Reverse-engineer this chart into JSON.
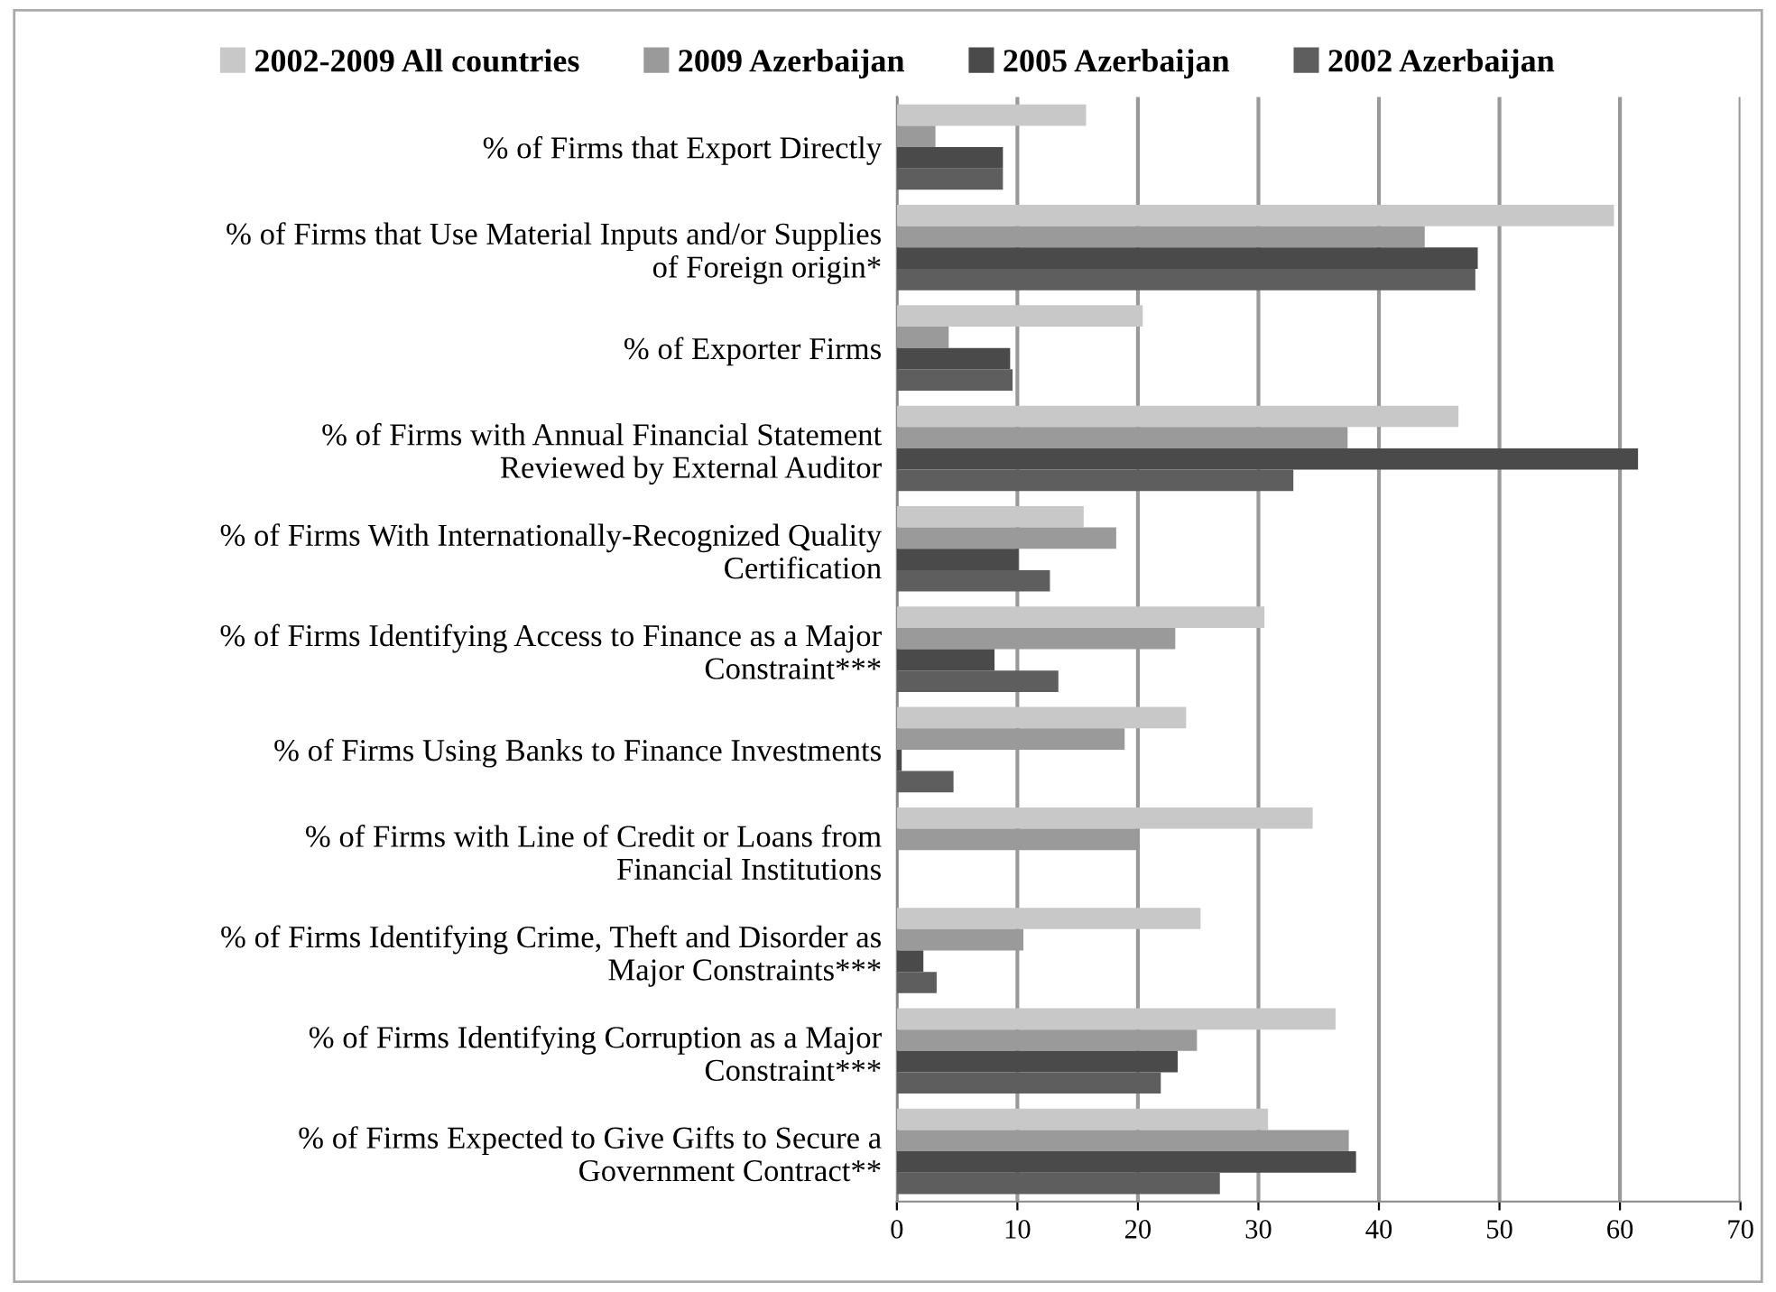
{
  "chart_data": {
    "type": "bar",
    "orientation": "horizontal",
    "categories": [
      "% of Firms that Export Directly",
      "% of Firms that Use Material Inputs and/or Supplies\nof Foreign origin*",
      "% of Exporter Firms",
      "% of Firms with Annual Financial Statement\nReviewed by External Auditor",
      "% of Firms With Internationally-Recognized Quality\nCertification",
      "% of Firms Identifying Access to Finance as a Major\nConstraint***",
      "% of Firms Using Banks to Finance Investments",
      "% of Firms with Line of Credit or Loans from\nFinancial Institutions",
      "% of Firms Identifying Crime, Theft and Disorder as\nMajor Constraints***",
      "% of Firms Identifying Corruption as a Major\nConstraint***",
      "% of Firms Expected to Give Gifts to Secure a\nGovernment Contract**"
    ],
    "series": [
      {
        "name": "2002-2009 All countries",
        "color": "#c8c8c8",
        "values": [
          15.7,
          59.5,
          20.4,
          46.6,
          15.5,
          30.5,
          24.0,
          34.5,
          25.2,
          36.4,
          30.8
        ]
      },
      {
        "name": "2009 Azerbaijan",
        "color": "#9a9a9a",
        "values": [
          3.2,
          43.8,
          4.3,
          37.4,
          18.2,
          23.1,
          18.9,
          19.9,
          10.5,
          24.9,
          37.5
        ]
      },
      {
        "name": "2005 Azerbaijan",
        "color": "#4a4a4a",
        "values": [
          8.8,
          48.2,
          9.4,
          61.5,
          10.1,
          8.1,
          0.4,
          null,
          2.2,
          23.3,
          38.1
        ]
      },
      {
        "name": "2002 Azerbaijan",
        "color": "#5e5e5e",
        "values": [
          8.8,
          48.0,
          9.6,
          32.9,
          12.7,
          13.4,
          4.7,
          null,
          3.3,
          21.9,
          26.8
        ]
      }
    ],
    "xlim": [
      0,
      70
    ],
    "xticks": [
      0,
      10,
      20,
      30,
      40,
      50,
      60,
      70
    ],
    "grid": "x",
    "legend": "top"
  }
}
